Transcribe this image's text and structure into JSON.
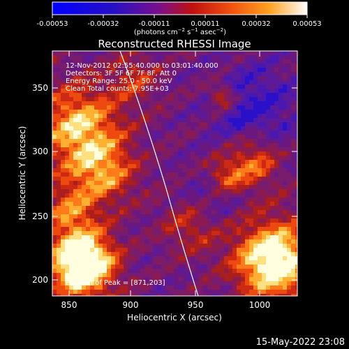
{
  "colorbar": {
    "ticks": [
      "-0.00053",
      "-0.00032",
      "-0.00011",
      "0.00011",
      "0.00032",
      "0.00053"
    ],
    "units_html": "(photons cm<tspan baseline-shift=\"super\" font-size=\"7\">−2</tspan> s<tspan baseline-shift=\"super\" font-size=\"7\">−1</tspan> asec<tspan baseline-shift=\"super\" font-size=\"7\">−2</tspan>)"
  },
  "plot": {
    "title": "Reconstructed RHESSI Image",
    "xlabel": "Heliocentric X (arcsec)",
    "ylabel": "Heliocentric Y (arcsec)",
    "xticks": [
      "850",
      "900",
      "950",
      "1000"
    ],
    "yticks": [
      "200",
      "250",
      "300",
      "350"
    ],
    "info": [
      "12-Nov-2012 02:55:40.000 to 03:01:40.000",
      "Detectors: 3F 5F 6F 7F 8F, Att 0",
      "Energy Range: 25.0 - 50.0 keV",
      "Clean    Total counts: 7.95E+03"
    ],
    "peak_label": "Position of Peak = [871,203]"
  },
  "footer": {
    "timestamp": "15-May-2022 23:08"
  },
  "colors": {
    "background": "#000000",
    "colormap": [
      "#0000ff",
      "#5a1a9a",
      "#7a1c6e",
      "#aa1e1e",
      "#ee4a10",
      "#ffb030",
      "#ffffe0"
    ]
  }
}
